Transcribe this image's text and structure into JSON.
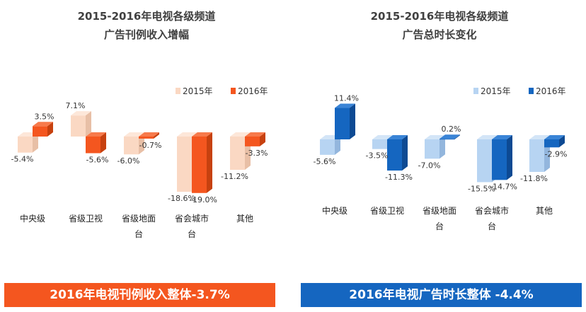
{
  "charts": {
    "left": {
      "title_line1": "2015-2016年电视各级频道",
      "title_line2": "广告刊例收入增幅",
      "banner": "2016年电视刊例收入整体-3.7%"
    },
    "right": {
      "title_line1": "2015-2016年电视各级频道",
      "title_line2": "广告总时长变化",
      "banner": "2016年电视广告时长整体 -4.4%"
    }
  },
  "colors": {
    "left_2015_front": "#fad8c3",
    "left_2015_side": "#e8bfa6",
    "left_2015_top": "#fde7d9",
    "left_2016_front": "#f4561f",
    "left_2016_side": "#c7410f",
    "left_2016_top": "#f77a4b",
    "right_2015_front": "#b7d4f2",
    "right_2015_side": "#93b6dd",
    "right_2015_top": "#d3e5f7",
    "right_2016_front": "#1566c0",
    "right_2016_side": "#0d4a93",
    "right_2016_top": "#3a84d6",
    "banner_left": "#f4561f",
    "banner_right": "#1566c0"
  },
  "chart_data": [
    {
      "type": "bar",
      "title": "2015-2016年电视各级频道 广告刊例收入增幅",
      "categories": [
        "中央级",
        "省级卫视",
        "省级地面台",
        "省会城市台",
        "其他"
      ],
      "category_lines": [
        [
          "中央级"
        ],
        [
          "省级卫视"
        ],
        [
          "省级地面",
          "台"
        ],
        [
          "省会城市",
          "台"
        ],
        [
          "其他"
        ]
      ],
      "series": [
        {
          "name": "2015年",
          "values": [
            -5.4,
            7.1,
            -6.0,
            -18.6,
            -11.2
          ],
          "labels": [
            "-5.4%",
            "7.1%",
            "-6.0%",
            "-18.6%",
            "-11.2%"
          ]
        },
        {
          "name": "2016年",
          "values": [
            3.5,
            -5.6,
            -0.7,
            -19.0,
            -3.3
          ],
          "labels": [
            "3.5%",
            "-5.6%",
            "-0.7%",
            "-19.0%",
            "-3.3%"
          ]
        }
      ],
      "legend": "top-right",
      "grid": false
    },
    {
      "type": "bar",
      "title": "2015-2016年电视各级频道 广告总时长变化",
      "categories": [
        "中央级",
        "省级卫视",
        "省级地面台",
        "省会城市台",
        "其他"
      ],
      "category_lines": [
        [
          "中央级"
        ],
        [
          "省级卫视"
        ],
        [
          "省级地面",
          "台"
        ],
        [
          "省会城市",
          "台"
        ],
        [
          "其他"
        ]
      ],
      "series": [
        {
          "name": "2015年",
          "values": [
            -5.6,
            -3.5,
            -7.0,
            -15.5,
            -11.8
          ],
          "labels": [
            "-5.6%",
            "-3.5%",
            "-7.0%",
            "-15.5%",
            "-11.8%"
          ]
        },
        {
          "name": "2016年",
          "values": [
            11.4,
            -11.3,
            0.2,
            -14.7,
            -2.9
          ],
          "labels": [
            "11.4%",
            "-11.3%",
            "0.2%",
            "-14.7%",
            "-2.9%"
          ]
        }
      ],
      "legend": "top-right",
      "grid": false
    }
  ]
}
